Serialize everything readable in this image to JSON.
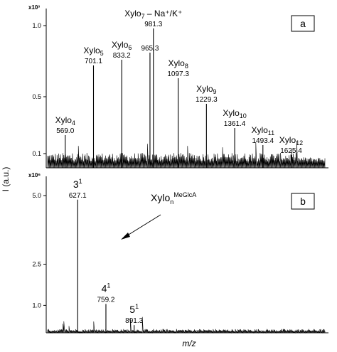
{
  "figure": {
    "y_axis_label": "I (a.u.)",
    "x_axis_label": "m/z"
  },
  "chart_data": [
    {
      "type": "line",
      "panel_label": "a",
      "y_multiplier": "x10³",
      "y_ticks": [
        "0.1",
        "0.5",
        "1.0"
      ],
      "ylim": [
        0,
        1.12
      ],
      "xlim": [
        480,
        1800
      ],
      "peaks": [
        {
          "mz": 569.0,
          "intensity": 0.23,
          "ion": "Xylo",
          "dp": "4",
          "mz_label": "569.0"
        },
        {
          "mz": 701.1,
          "intensity": 0.72,
          "ion": "Xylo",
          "dp": "5",
          "mz_label": "701.1"
        },
        {
          "mz": 833.2,
          "intensity": 0.76,
          "ion": "Xylo",
          "dp": "6",
          "mz_label": "833.2"
        },
        {
          "mz": 965.3,
          "intensity": 0.81,
          "ion": "",
          "dp": "",
          "mz_label": "965.3"
        },
        {
          "mz": 981.3,
          "intensity": 0.98,
          "ion": "Xylo",
          "dp": "7",
          "ion_suffix": " – Na⁺/K⁺",
          "mz_label": "981.3"
        },
        {
          "mz": 1097.3,
          "intensity": 0.63,
          "ion": "Xylo",
          "dp": "8",
          "mz_label": "1097.3"
        },
        {
          "mz": 1229.3,
          "intensity": 0.45,
          "ion": "Xylo",
          "dp": "9",
          "mz_label": "1229.3"
        },
        {
          "mz": 1361.4,
          "intensity": 0.28,
          "ion": "Xylo",
          "dp": "10",
          "mz_label": "1361.4"
        },
        {
          "mz": 1493.4,
          "intensity": 0.16,
          "ion": "Xylo",
          "dp": "11",
          "mz_label": "1493.4"
        },
        {
          "mz": 1625.4,
          "intensity": 0.09,
          "ion": "Xylo",
          "dp": "12",
          "mz_label": "1625.4"
        }
      ]
    },
    {
      "type": "line",
      "panel_label": "b",
      "y_multiplier": "x10⁶",
      "y_ticks": [
        "1.0",
        "2.5",
        "5.0"
      ],
      "ylim": [
        0,
        5.7
      ],
      "xlim": [
        480,
        1800
      ],
      "annotation": {
        "text": "Xylo",
        "sub": "n",
        "sup": "MeGlcA"
      },
      "peaks": [
        {
          "mz": 627.1,
          "intensity": 4.85,
          "num": "3",
          "sup": "1",
          "mz_label": "627.1"
        },
        {
          "mz": 759.2,
          "intensity": 1.05,
          "num": "4",
          "sup": "1",
          "mz_label": "759.2"
        },
        {
          "mz": 891.3,
          "intensity": 0.28,
          "num": "5",
          "sup": "1",
          "mz_label": "891.3"
        }
      ]
    }
  ]
}
